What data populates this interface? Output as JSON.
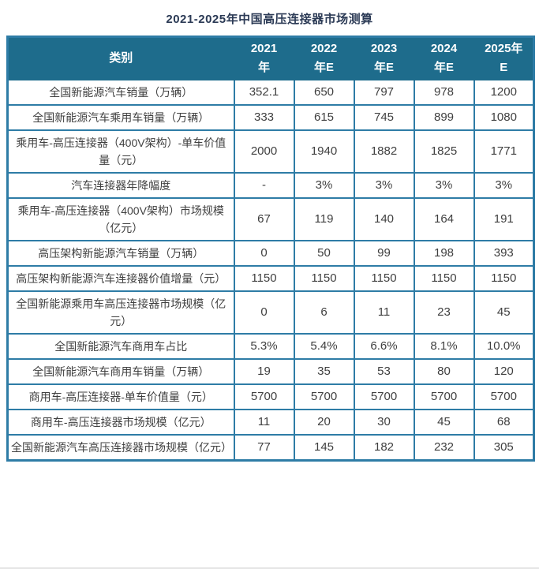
{
  "title": "2021-2025年中国高压连接器市场测算",
  "colors": {
    "header_bg": "#1E6C8C",
    "border_color": "#2E7CA6",
    "text_color": "#3F3F3F",
    "title_color": "#2B3A55",
    "page_bg": "#FFFFFF",
    "shadow_color": "#D9D9D9"
  },
  "chart_data": {
    "type": "table",
    "title": "2021-2025年中国高压连接器市场测算",
    "category_header": "类别",
    "columns": [
      "类别",
      "2021年",
      "2022年E",
      "2023年E",
      "2024年E",
      "2025年E"
    ],
    "header_lines": [
      [
        "2021",
        "年"
      ],
      [
        "2022",
        "年E"
      ],
      [
        "2023",
        "年E"
      ],
      [
        "2024",
        "年E"
      ],
      [
        "2025年",
        "E"
      ]
    ],
    "rows": [
      {
        "label": "全国新能源汽车销量（万辆）",
        "values": [
          "352.1",
          "650",
          "797",
          "978",
          "1200"
        ]
      },
      {
        "label": "全国新能源汽车乘用车销量（万辆）",
        "values": [
          "333",
          "615",
          "745",
          "899",
          "1080"
        ]
      },
      {
        "label": "乘用车-高压连接器（400V架构）-单车价值量（元）",
        "values": [
          "2000",
          "1940",
          "1882",
          "1825",
          "1771"
        ]
      },
      {
        "label": "汽车连接器年降幅度",
        "values": [
          "-",
          "3%",
          "3%",
          "3%",
          "3%"
        ]
      },
      {
        "label": "乘用车-高压连接器（400V架构）市场规模（亿元）",
        "values": [
          "67",
          "119",
          "140",
          "164",
          "191"
        ]
      },
      {
        "label": "高压架构新能源汽车销量（万辆）",
        "values": [
          "0",
          "50",
          "99",
          "198",
          "393"
        ]
      },
      {
        "label": "高压架构新能源汽车连接器价值增量（元）",
        "values": [
          "1150",
          "1150",
          "1150",
          "1150",
          "1150"
        ]
      },
      {
        "label": "全国新能源乘用车高压连接器市场规模（亿元）",
        "values": [
          "0",
          "6",
          "11",
          "23",
          "45"
        ]
      },
      {
        "label": "全国新能源汽车商用车占比",
        "values": [
          "5.3%",
          "5.4%",
          "6.6%",
          "8.1%",
          "10.0%"
        ]
      },
      {
        "label": "全国新能源汽车商用车销量（万辆）",
        "values": [
          "19",
          "35",
          "53",
          "80",
          "120"
        ]
      },
      {
        "label": "商用车-高压连接器-单车价值量（元）",
        "values": [
          "5700",
          "5700",
          "5700",
          "5700",
          "5700"
        ]
      },
      {
        "label": "商用车-高压连接器市场规模（亿元）",
        "values": [
          "11",
          "20",
          "30",
          "45",
          "68"
        ]
      },
      {
        "label": "全国新能源汽车高压连接器市场规模（亿元）",
        "values": [
          "77",
          "145",
          "182",
          "232",
          "305"
        ]
      }
    ]
  }
}
